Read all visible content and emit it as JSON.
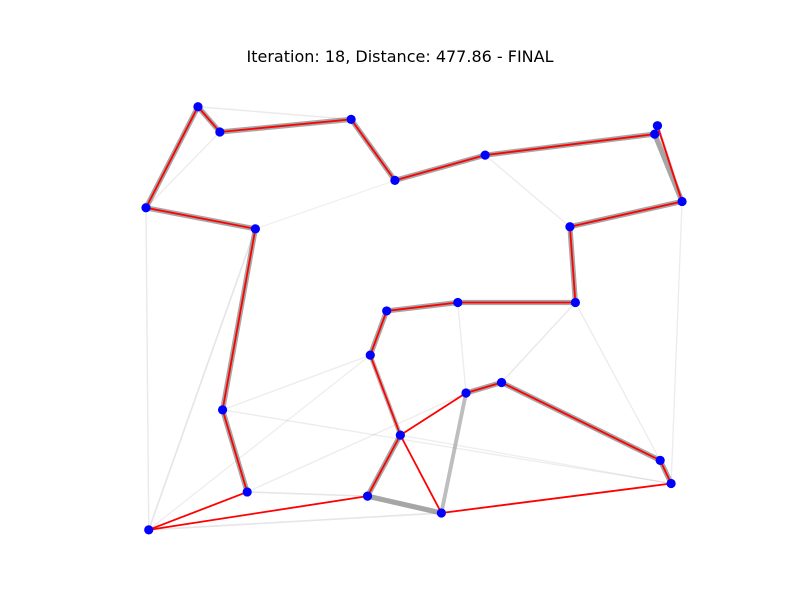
{
  "chart_data": {
    "type": "scatter",
    "title": "Iteration: 18, Distance: 477.86 - FINAL",
    "iteration": 18,
    "distance": 477.86,
    "status": "FINAL",
    "xlim": [
      0,
      100
    ],
    "ylim": [
      0,
      100
    ],
    "axes_visible": false,
    "grid": false,
    "colors": {
      "city": "#0000ff",
      "tour": "#ff0000",
      "pheromone": "#808080"
    },
    "cities": [
      {
        "id": 0,
        "x": 9.5,
        "y": 96.5
      },
      {
        "id": 1,
        "x": 13.5,
        "y": 90.5
      },
      {
        "id": 2,
        "x": 37.5,
        "y": 93.5
      },
      {
        "id": 3,
        "x": 45.5,
        "y": 79.0
      },
      {
        "id": 4,
        "x": 62.0,
        "y": 85.0
      },
      {
        "id": 5,
        "x": 93.0,
        "y": 90.0
      },
      {
        "id": 6,
        "x": 93.5,
        "y": 92.0
      },
      {
        "id": 7,
        "x": 98.0,
        "y": 74.0
      },
      {
        "id": 8,
        "x": 77.5,
        "y": 68.0
      },
      {
        "id": 9,
        "x": 78.5,
        "y": 50.0
      },
      {
        "id": 10,
        "x": 57.0,
        "y": 50.0
      },
      {
        "id": 11,
        "x": 44.0,
        "y": 48.0
      },
      {
        "id": 12,
        "x": 41.0,
        "y": 37.5
      },
      {
        "id": 13,
        "x": 46.5,
        "y": 18.5
      },
      {
        "id": 14,
        "x": 40.5,
        "y": 4.0
      },
      {
        "id": 15,
        "x": 54.0,
        "y": 0.0
      },
      {
        "id": 16,
        "x": 58.5,
        "y": 28.5
      },
      {
        "id": 17,
        "x": 65.0,
        "y": 31.0
      },
      {
        "id": 18,
        "x": 94.0,
        "y": 12.5
      },
      {
        "id": 19,
        "x": 96.0,
        "y": 7.0
      },
      {
        "id": 20,
        "x": 18.5,
        "y": 5.0
      },
      {
        "id": 21,
        "x": 14.0,
        "y": 24.5
      },
      {
        "id": 22,
        "x": 20.0,
        "y": 67.5
      },
      {
        "id": 23,
        "x": 0.0,
        "y": 72.5
      },
      {
        "id": 24,
        "x": 0.5,
        "y": -4.0
      }
    ],
    "tour": [
      0,
      1,
      2,
      3,
      4,
      5,
      6,
      7,
      8,
      9,
      10,
      11,
      12,
      13,
      16,
      17,
      18,
      19,
      15,
      13,
      14,
      24,
      20,
      21,
      22,
      23,
      0
    ],
    "pheromone_edges": [
      {
        "from": 0,
        "to": 1,
        "strength": 1.0
      },
      {
        "from": 1,
        "to": 2,
        "strength": 1.0
      },
      {
        "from": 2,
        "to": 3,
        "strength": 1.0
      },
      {
        "from": 3,
        "to": 4,
        "strength": 1.0
      },
      {
        "from": 4,
        "to": 5,
        "strength": 1.0
      },
      {
        "from": 6,
        "to": 7,
        "strength": 0.5
      },
      {
        "from": 5,
        "to": 7,
        "strength": 1.0
      },
      {
        "from": 7,
        "to": 8,
        "strength": 1.0
      },
      {
        "from": 8,
        "to": 9,
        "strength": 1.0
      },
      {
        "from": 9,
        "to": 10,
        "strength": 1.0
      },
      {
        "from": 10,
        "to": 11,
        "strength": 1.0
      },
      {
        "from": 11,
        "to": 12,
        "strength": 1.0
      },
      {
        "from": 12,
        "to": 13,
        "strength": 0.8
      },
      {
        "from": 13,
        "to": 14,
        "strength": 1.0
      },
      {
        "from": 14,
        "to": 15,
        "strength": 1.0
      },
      {
        "from": 15,
        "to": 16,
        "strength": 0.7
      },
      {
        "from": 16,
        "to": 17,
        "strength": 1.0
      },
      {
        "from": 17,
        "to": 18,
        "strength": 1.0
      },
      {
        "from": 18,
        "to": 19,
        "strength": 1.0
      },
      {
        "from": 20,
        "to": 21,
        "strength": 1.0
      },
      {
        "from": 21,
        "to": 22,
        "strength": 1.0
      },
      {
        "from": 22,
        "to": 23,
        "strength": 1.0
      },
      {
        "from": 23,
        "to": 0,
        "strength": 1.0
      },
      {
        "from": 0,
        "to": 2,
        "strength": 0.15
      },
      {
        "from": 23,
        "to": 1,
        "strength": 0.12
      },
      {
        "from": 23,
        "to": 24,
        "strength": 0.15
      },
      {
        "from": 24,
        "to": 22,
        "strength": 0.2
      },
      {
        "from": 24,
        "to": 14,
        "strength": 0.18
      },
      {
        "from": 24,
        "to": 15,
        "strength": 0.2
      },
      {
        "from": 20,
        "to": 14,
        "strength": 0.2
      },
      {
        "from": 21,
        "to": 12,
        "strength": 0.12
      },
      {
        "from": 21,
        "to": 19,
        "strength": 0.12
      },
      {
        "from": 20,
        "to": 16,
        "strength": 0.12
      },
      {
        "from": 10,
        "to": 16,
        "strength": 0.12
      },
      {
        "from": 17,
        "to": 9,
        "strength": 0.15
      },
      {
        "from": 9,
        "to": 18,
        "strength": 0.12
      },
      {
        "from": 7,
        "to": 19,
        "strength": 0.12
      },
      {
        "from": 4,
        "to": 8,
        "strength": 0.12
      },
      {
        "from": 3,
        "to": 22,
        "strength": 0.08
      },
      {
        "from": 15,
        "to": 19,
        "strength": 0.15
      },
      {
        "from": 13,
        "to": 19,
        "strength": 0.1
      },
      {
        "from": 24,
        "to": 12,
        "strength": 0.1
      }
    ]
  }
}
